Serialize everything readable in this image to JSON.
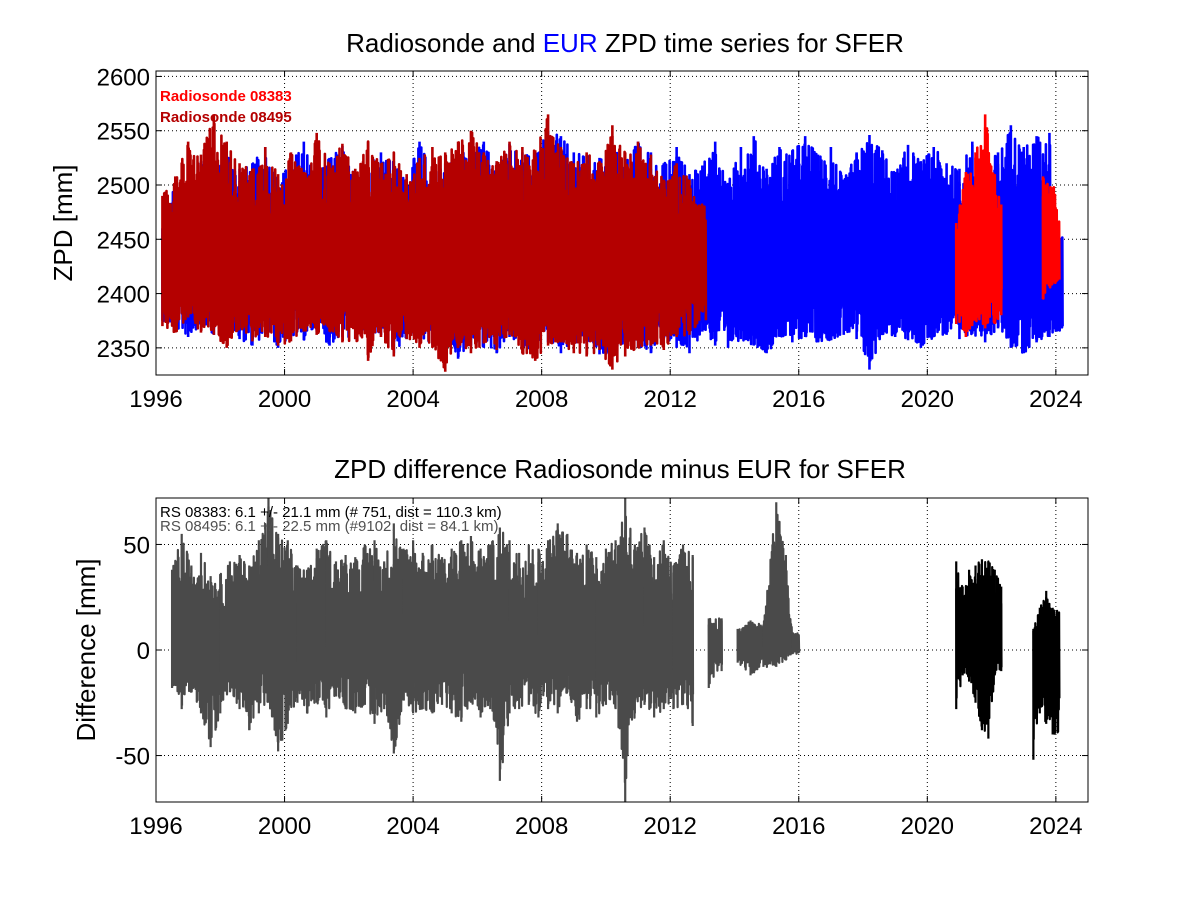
{
  "chart_data": [
    {
      "type": "line",
      "title_parts": [
        "Radiosonde and ",
        "EUR",
        " ZPD time series for SFER"
      ],
      "title_colors": [
        "#000000",
        "#0000ff",
        "#000000"
      ],
      "xlabel": "",
      "ylabel": "ZPD [mm]",
      "xlim": [
        1996,
        2025
      ],
      "ylim": [
        2325,
        2605
      ],
      "xticks": [
        1996,
        2000,
        2004,
        2008,
        2012,
        2016,
        2020,
        2024
      ],
      "yticks": [
        2350,
        2400,
        2450,
        2500,
        2550,
        2600
      ],
      "grid": true,
      "legend_position": "top-left",
      "series": [
        {
          "label": "EUR",
          "color": "#0000ff",
          "mean": 2425,
          "x": [
            1996.2,
            1996.6,
            1997.0,
            1997.4,
            1997.8,
            1998.2,
            1998.6,
            1999.0,
            1999.4,
            1999.8,
            2000.2,
            2000.6,
            2001.0,
            2001.4,
            2001.8,
            2002.2,
            2002.6,
            2003.0,
            2003.4,
            2003.8,
            2004.2,
            2004.6,
            2005.0,
            2005.4,
            2005.8,
            2006.2,
            2006.6,
            2007.0,
            2007.4,
            2007.8,
            2008.2,
            2008.6,
            2009.0,
            2009.4,
            2009.8,
            2010.2,
            2010.6,
            2011.0,
            2011.4,
            2011.8,
            2012.2,
            2012.6,
            2013.0,
            2013.4,
            2013.8,
            2014.2,
            2014.6,
            2015.0,
            2015.4,
            2015.8,
            2016.2,
            2016.6,
            2017.0,
            2017.4,
            2017.8,
            2018.2,
            2018.6,
            2019.0,
            2019.4,
            2019.8,
            2020.2,
            2020.6,
            2021.0,
            2021.4,
            2021.8,
            2022.2,
            2022.6,
            2023.0,
            2023.4,
            2023.8,
            2024.0
          ],
          "min": [
            2375,
            2368,
            2360,
            2372,
            2362,
            2365,
            2358,
            2352,
            2362,
            2350,
            2360,
            2357,
            2365,
            2352,
            2360,
            2358,
            2355,
            2362,
            2345,
            2358,
            2360,
            2353,
            2356,
            2340,
            2352,
            2350,
            2345,
            2360,
            2348,
            2352,
            2355,
            2345,
            2352,
            2353,
            2344,
            2345,
            2355,
            2350,
            2345,
            2358,
            2350,
            2345,
            2365,
            2352,
            2350,
            2358,
            2352,
            2345,
            2360,
            2355,
            2360,
            2355,
            2357,
            2362,
            2358,
            2330,
            2362,
            2360,
            2357,
            2350,
            2360,
            2362,
            2358,
            2363,
            2355,
            2368,
            2350,
            2345,
            2355,
            2360,
            2365
          ],
          "max": [
            2460,
            2502,
            2495,
            2522,
            2510,
            2532,
            2515,
            2520,
            2535,
            2505,
            2522,
            2540,
            2512,
            2525,
            2536,
            2510,
            2528,
            2530,
            2522,
            2505,
            2540,
            2515,
            2520,
            2532,
            2530,
            2540,
            2520,
            2538,
            2530,
            2525,
            2550,
            2545,
            2530,
            2528,
            2525,
            2535,
            2525,
            2540,
            2530,
            2520,
            2535,
            2510,
            2518,
            2540,
            2502,
            2535,
            2545,
            2515,
            2535,
            2532,
            2545,
            2528,
            2535,
            2505,
            2530,
            2546,
            2532,
            2512,
            2537,
            2522,
            2535,
            2520,
            2515,
            2540,
            2520,
            2530,
            2555,
            2535,
            2545,
            2548,
            2455
          ]
        },
        {
          "label": "Radiosonde 08383",
          "color": "#ff0000",
          "mean": 2430,
          "x": [
            2020.9,
            2021.2,
            2021.5,
            2021.8,
            2022.1,
            2022.3,
            2023.6,
            2023.9
          ],
          "min": [
            2372,
            2360,
            2375,
            2368,
            2372,
            2380,
            2395,
            2410
          ],
          "max": [
            2465,
            2512,
            2530,
            2565,
            2510,
            2482,
            2508,
            2498
          ]
        },
        {
          "label": "Radiosonde 08495",
          "color": "#b40000",
          "mean": 2423,
          "x": [
            1996.2,
            1996.6,
            1997.0,
            1997.4,
            1997.8,
            1998.2,
            1998.6,
            1999.0,
            1999.4,
            1999.8,
            2000.2,
            2000.6,
            2001.0,
            2001.4,
            2001.8,
            2002.2,
            2002.6,
            2003.0,
            2003.4,
            2003.8,
            2004.2,
            2004.6,
            2005.0,
            2005.4,
            2005.8,
            2006.2,
            2006.6,
            2007.0,
            2007.4,
            2007.8,
            2008.2,
            2008.6,
            2009.0,
            2009.4,
            2009.8,
            2010.2,
            2010.6,
            2011.0,
            2011.4,
            2011.8,
            2012.2,
            2012.6,
            2012.9
          ],
          "min": [
            2370,
            2364,
            2378,
            2364,
            2362,
            2350,
            2368,
            2356,
            2360,
            2352,
            2356,
            2365,
            2362,
            2365,
            2355,
            2358,
            2338,
            2360,
            2342,
            2358,
            2350,
            2350,
            2328,
            2350,
            2345,
            2354,
            2348,
            2362,
            2345,
            2338,
            2352,
            2355,
            2345,
            2342,
            2348,
            2330,
            2342,
            2350,
            2352,
            2348,
            2360,
            2362,
            2375
          ],
          "max": [
            2490,
            2508,
            2540,
            2528,
            2565,
            2540,
            2520,
            2515,
            2535,
            2510,
            2530,
            2512,
            2548,
            2520,
            2538,
            2515,
            2540,
            2520,
            2530,
            2510,
            2525,
            2535,
            2530,
            2540,
            2550,
            2530,
            2522,
            2540,
            2535,
            2532,
            2565,
            2535,
            2520,
            2530,
            2522,
            2555,
            2530,
            2540,
            2528,
            2505,
            2520,
            2505,
            2482
          ]
        }
      ],
      "legend": [
        "Radiosonde 08383",
        "Radiosonde 08495"
      ]
    },
    {
      "type": "line",
      "title": "ZPD difference Radiosonde minus EUR for SFER",
      "xlabel": "",
      "ylabel": "Difference [mm]",
      "xlim": [
        1996,
        2025
      ],
      "ylim": [
        -72,
        72
      ],
      "xticks": [
        1996,
        2000,
        2004,
        2008,
        2012,
        2016,
        2020,
        2024
      ],
      "yticks": [
        -50,
        0,
        50
      ],
      "grid": true,
      "legend_position": "top-left",
      "stats": [
        {
          "text": "RS 08383: 6.1 +/- 21.1 mm (# 751, dist = 110.3 km)",
          "color": "#000000"
        },
        {
          "text": "RS 08495: 6.1 +/- 22.5 mm (#9102, dist =  84.1 km)",
          "color": "#505050"
        }
      ],
      "series": [
        {
          "label": "RS 08495",
          "color": "#4a4a4a",
          "x": [
            1996.5,
            1996.8,
            1997.1,
            1997.4,
            1997.7,
            1998.0,
            1998.3,
            1998.6,
            1998.9,
            1999.2,
            1999.5,
            1999.8,
            2000.1,
            2000.4,
            2000.7,
            2001.0,
            2001.3,
            2001.6,
            2001.9,
            2002.2,
            2002.5,
            2002.8,
            2003.1,
            2003.4,
            2003.7,
            2004.0,
            2004.3,
            2004.6,
            2004.9,
            2005.2,
            2005.5,
            2005.8,
            2006.1,
            2006.4,
            2006.7,
            2007.0,
            2007.3,
            2007.6,
            2007.9,
            2008.2,
            2008.5,
            2008.8,
            2009.1,
            2009.4,
            2009.7,
            2010.0,
            2010.3,
            2010.6,
            2010.9,
            2011.2,
            2011.5,
            2011.8,
            2012.1,
            2012.4,
            2012.7,
            2013.2,
            2013.6,
            2014.1,
            2014.5,
            2014.9,
            2015.3,
            2015.6,
            2015.8
          ],
          "min": [
            -18,
            -28,
            -20,
            -30,
            -46,
            -30,
            -20,
            -28,
            -38,
            -30,
            -25,
            -48,
            -35,
            -25,
            -30,
            -25,
            -32,
            -22,
            -28,
            -30,
            -26,
            -35,
            -28,
            -49,
            -24,
            -30,
            -28,
            -30,
            -26,
            -30,
            -34,
            -25,
            -32,
            -28,
            -62,
            -30,
            -28,
            -26,
            -32,
            -28,
            -30,
            -20,
            -34,
            -28,
            -32,
            -26,
            -28,
            -72,
            -30,
            -26,
            -32,
            -28,
            -28,
            -26,
            -36,
            -18,
            -10,
            -6,
            -12,
            -8,
            -8,
            -5,
            -2
          ],
          "max": [
            38,
            55,
            40,
            46,
            35,
            36,
            42,
            45,
            40,
            52,
            72,
            55,
            52,
            40,
            38,
            48,
            52,
            42,
            45,
            44,
            50,
            52,
            42,
            60,
            48,
            52,
            46,
            50,
            44,
            48,
            52,
            54,
            48,
            50,
            58,
            52,
            46,
            50,
            48,
            52,
            60,
            55,
            46,
            50,
            44,
            48,
            52,
            72,
            50,
            58,
            44,
            52,
            40,
            50,
            45,
            15,
            15,
            10,
            14,
            12,
            70,
            45,
            8
          ]
        },
        {
          "label": "RS 08383",
          "color": "#000000",
          "x": [
            2020.9,
            2021.1,
            2021.3,
            2021.5,
            2021.7,
            2021.9,
            2022.1,
            2022.3,
            2023.3,
            2023.5,
            2023.7,
            2023.9
          ],
          "min": [
            -28,
            -12,
            -15,
            -25,
            -38,
            -42,
            -12,
            -10,
            -52,
            -30,
            -35,
            -40
          ],
          "max": [
            42,
            30,
            38,
            40,
            43,
            42,
            38,
            30,
            10,
            20,
            28,
            20
          ]
        }
      ]
    }
  ]
}
